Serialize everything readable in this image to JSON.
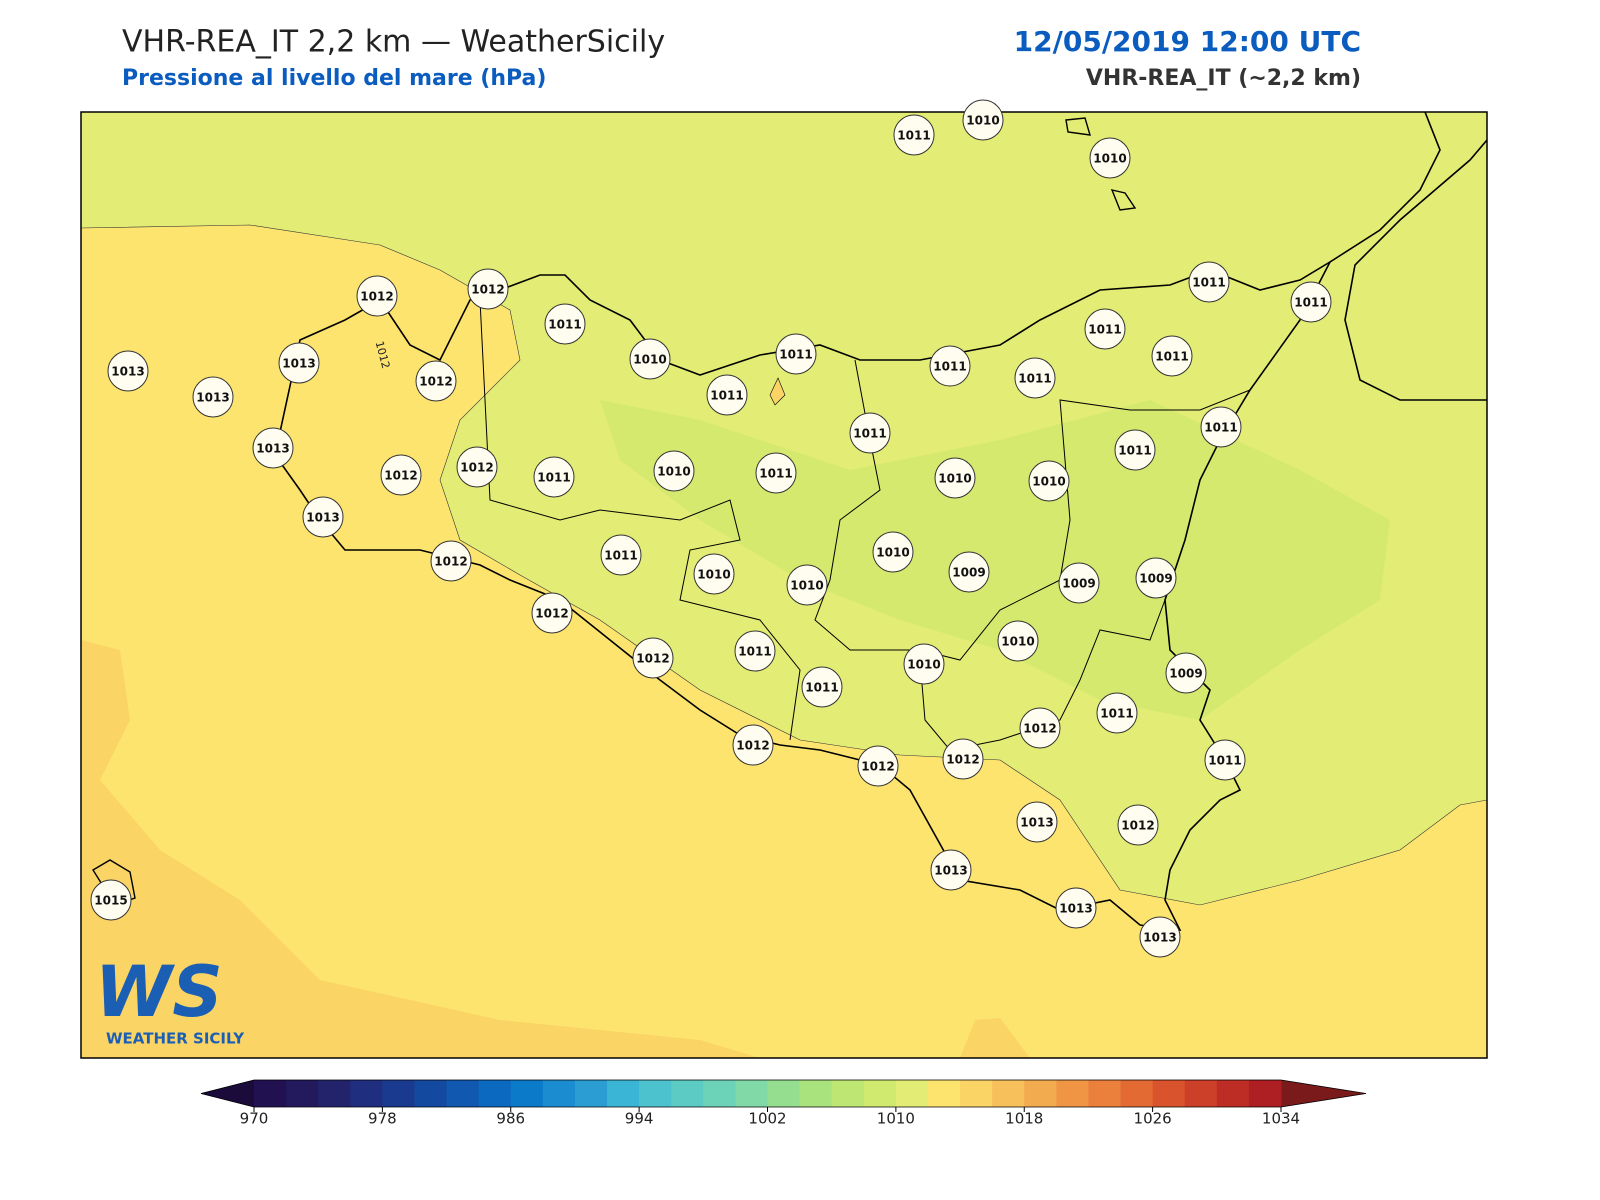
{
  "header": {
    "title": "VHR-REA_IT 2,2 km — WeatherSicily",
    "subtitle": "Pressione al livello del mare (hPa)",
    "datetime": "12/05/2019 12:00 UTC",
    "model": "VHR-REA_IT (~2,2 km)"
  },
  "map": {
    "contour_label": "1012",
    "stations": [
      1011,
      1010,
      1010,
      1012,
      1012,
      1011,
      1010,
      1011,
      1011,
      1011,
      1011,
      1011,
      1011,
      1011,
      1011,
      1013,
      1013,
      1013,
      1012,
      1013,
      1012,
      1012,
      1011,
      1010,
      1011,
      1011,
      1010,
      1010,
      1011,
      1011,
      1013,
      1012,
      1011,
      1010,
      1010,
      1010,
      1009,
      1009,
      1009,
      1012,
      1012,
      1011,
      1011,
      1010,
      1010,
      1009,
      1012,
      1011,
      1011,
      1012,
      1012,
      1012,
      1013,
      1012,
      1013,
      1013,
      1013,
      1015
    ]
  },
  "logo": {
    "mark": "WS",
    "name": "WEATHER SICILY"
  },
  "colorbar": {
    "range": [
      970,
      1034
    ],
    "ticks": [
      970,
      978,
      986,
      994,
      1002,
      1010,
      1018,
      1026,
      1034
    ],
    "colors": [
      "#221150",
      "#231a5e",
      "#23236c",
      "#1f2e7e",
      "#1a3a8f",
      "#1449a0",
      "#1058b0",
      "#0c69c0",
      "#0b7ac8",
      "#1a8ccf",
      "#2b9dd3",
      "#3bb5d6",
      "#4cc2cf",
      "#5ccbc4",
      "#6dd3b8",
      "#80d9a6",
      "#95de90",
      "#a9e37e",
      "#bde672",
      "#d0e96f",
      "#e3ec75",
      "#fde46f",
      "#fbd466",
      "#f7c05a",
      "#f3ab4f",
      "#ef9544",
      "#ea803b",
      "#e36a33",
      "#d9542d",
      "#cc3f29",
      "#bd2d25",
      "#ad1f22"
    ],
    "under_color": "#1a0b3a",
    "over_color": "#7a1a1a"
  }
}
